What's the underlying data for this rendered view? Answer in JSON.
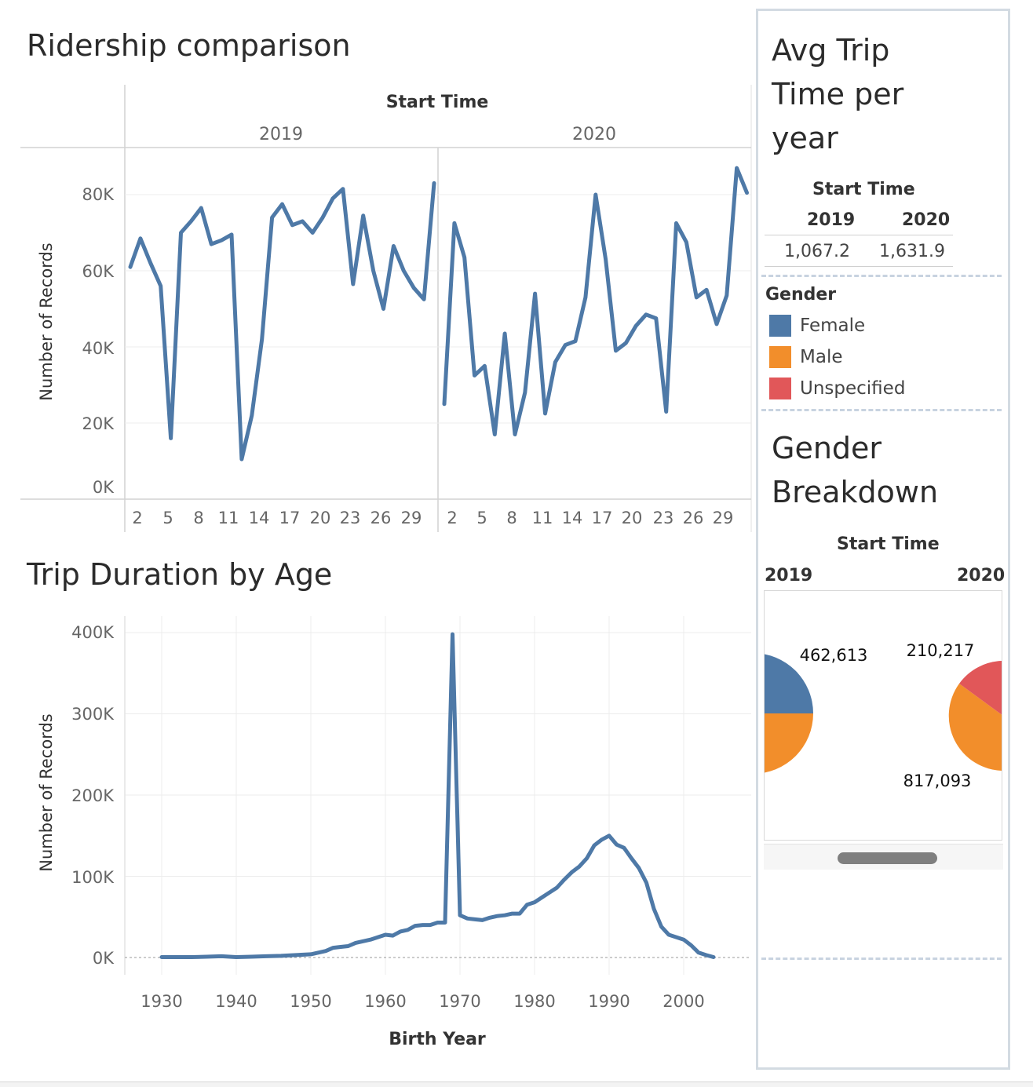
{
  "ridership": {
    "title": "Ridership comparison",
    "header": "Start Time",
    "panel_years": [
      "2019",
      "2020"
    ],
    "ylabel": "Number of Records",
    "y_ticks": [
      "80K",
      "60K",
      "40K",
      "20K",
      "0K"
    ],
    "x_ticks": [
      "2",
      "5",
      "8",
      "11",
      "14",
      "17",
      "20",
      "23",
      "26",
      "29"
    ]
  },
  "trip_duration": {
    "title": "Trip Duration by Age",
    "ylabel": "Number of Records",
    "xlabel": "Birth Year",
    "y_ticks": [
      "400K",
      "300K",
      "200K",
      "100K",
      "0K"
    ],
    "x_ticks": [
      "1930",
      "1940",
      "1950",
      "1960",
      "1970",
      "1980",
      "1990",
      "2000"
    ]
  },
  "avg_trip": {
    "title_lines": [
      "Avg Trip",
      "Time per",
      "year"
    ],
    "header": "Start Time",
    "years": [
      "2019",
      "2020"
    ],
    "values": [
      "1,067.2",
      "1,631.9"
    ]
  },
  "legend": {
    "title": "Gender",
    "items": [
      {
        "label": "Female",
        "color": "#4e79a7"
      },
      {
        "label": "Male",
        "color": "#f28e2b"
      },
      {
        "label": "Unspecified",
        "color": "#e15759"
      }
    ]
  },
  "gender_breakdown": {
    "title_lines": [
      "Gender",
      "Breakdown"
    ],
    "header": "Start Time",
    "years": [
      "2019",
      "2020"
    ],
    "labels": [
      "462,613",
      "210,217",
      "817,093"
    ]
  },
  "chart_data": [
    {
      "type": "line",
      "title": "Ridership comparison",
      "ylabel": "Number of Records",
      "ylim": [
        0,
        90000
      ],
      "series": [
        {
          "name": "2019",
          "x": [
            1,
            2,
            3,
            4,
            5,
            6,
            7,
            8,
            9,
            10,
            11,
            12,
            13,
            14,
            15,
            16,
            17,
            18,
            19,
            20,
            21,
            22,
            23,
            24,
            25,
            26,
            27,
            28,
            29,
            30,
            31
          ],
          "values": [
            61000,
            68500,
            62000,
            56000,
            16000,
            70000,
            73000,
            76500,
            67000,
            68000,
            69500,
            10500,
            22000,
            42000,
            74000,
            77500,
            72000,
            73000,
            70000,
            74000,
            79000,
            81500,
            56500,
            74500,
            60000,
            50000,
            66500,
            60000,
            55500,
            52500,
            83000
          ]
        },
        {
          "name": "2020",
          "x": [
            1,
            2,
            3,
            4,
            5,
            6,
            7,
            8,
            9,
            10,
            11,
            12,
            13,
            14,
            15,
            16,
            17,
            18,
            19,
            20,
            21,
            22,
            23,
            24,
            25,
            26,
            27,
            28,
            29,
            30,
            31
          ],
          "values": [
            25000,
            72500,
            63500,
            32500,
            35000,
            17000,
            43500,
            17000,
            28000,
            54000,
            22500,
            36000,
            40500,
            41500,
            53000,
            80000,
            63000,
            39000,
            41000,
            45500,
            48500,
            47500,
            23000,
            72500,
            67500,
            53000,
            55000,
            46000,
            53500,
            87000,
            80500
          ]
        }
      ]
    },
    {
      "type": "line",
      "title": "Trip Duration by Age",
      "xlabel": "Birth Year",
      "ylabel": "Number of Records",
      "xlim": [
        1925,
        2009
      ],
      "ylim": [
        0,
        400000
      ],
      "series": [
        {
          "x": [
            1930,
            1932,
            1934,
            1936,
            1938,
            1940,
            1942,
            1944,
            1946,
            1948,
            1950,
            1952,
            1953,
            1954,
            1955,
            1956,
            1958,
            1960,
            1961,
            1962,
            1963,
            1964,
            1965,
            1966,
            1967,
            1968,
            1969,
            1970,
            1971,
            1972,
            1973,
            1974,
            1975,
            1976,
            1977,
            1978,
            1979,
            1980,
            1981,
            1982,
            1983,
            1984,
            1985,
            1986,
            1987,
            1988,
            1989,
            1990,
            1991,
            1992,
            1993,
            1994,
            1995,
            1996,
            1997,
            1998,
            2000,
            2001,
            2002,
            2003,
            2004
          ],
          "values": [
            500,
            500,
            500,
            1000,
            1500,
            500,
            1000,
            1500,
            2000,
            3000,
            4000,
            8000,
            12000,
            13000,
            14000,
            18000,
            22000,
            28000,
            27000,
            32000,
            34000,
            39000,
            40000,
            40000,
            43000,
            43000,
            398000,
            52000,
            48000,
            47000,
            46000,
            49000,
            51000,
            52000,
            54000,
            54000,
            65000,
            68000,
            74000,
            80000,
            86000,
            96000,
            105000,
            112000,
            122000,
            138000,
            145000,
            150000,
            139000,
            135000,
            122000,
            110000,
            92000,
            60000,
            38000,
            28000,
            22000,
            15000,
            6000,
            3000,
            500
          ]
        }
      ]
    },
    {
      "type": "pie",
      "title": "Gender Breakdown",
      "categories": [
        "Female",
        "Male",
        "Unspecified"
      ],
      "series": [
        {
          "name": "2019",
          "labels": [
            "462,613"
          ]
        },
        {
          "name": "2020",
          "labels": [
            "210,217",
            "817,093"
          ]
        }
      ]
    }
  ]
}
